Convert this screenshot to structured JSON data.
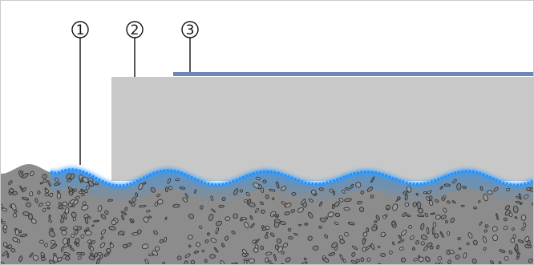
{
  "callouts": [
    {
      "label": "1",
      "part": "primer"
    },
    {
      "label": "2",
      "part": "screed"
    },
    {
      "label": "3",
      "part": "floor-covering"
    }
  ],
  "colors": {
    "background": "#ffffff",
    "screed": "#c8c8c8",
    "substrate": "#8c8c8c",
    "aggregate_outline": "#2a2a2a",
    "primer": "#2f9bff",
    "covering": "#6b86b8",
    "leader_line": "#111111"
  }
}
